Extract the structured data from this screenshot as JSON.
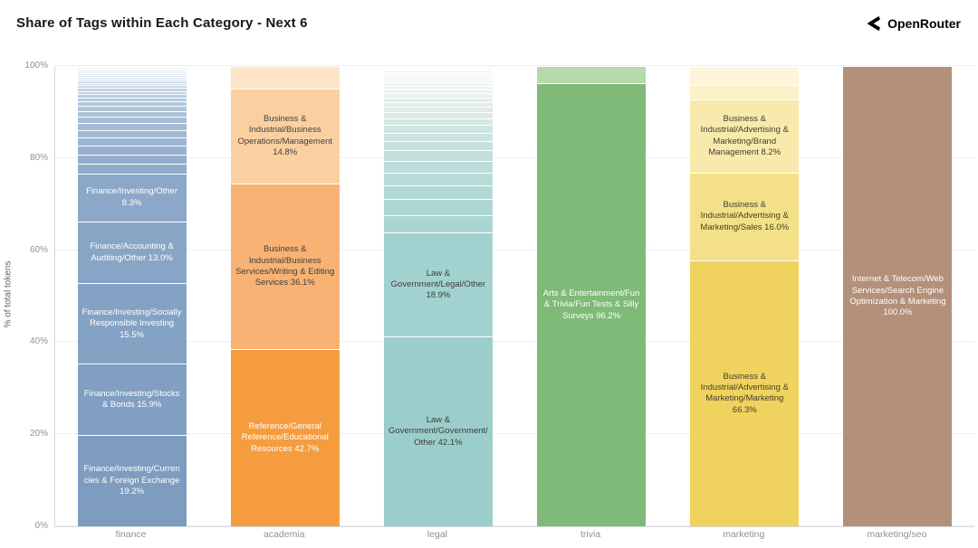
{
  "header": {
    "title": "Share of Tags within Each Category - Next 6",
    "brand": "OpenRouter"
  },
  "chart_data": {
    "type": "bar",
    "stacked": true,
    "title": "Share of Tags within Each Category - Next 6",
    "xlabel": "",
    "ylabel": "% of total tokens",
    "ylim": [
      0,
      100
    ],
    "grid": true,
    "legend": false,
    "yticks": [
      0,
      20,
      40,
      60,
      80,
      100
    ],
    "ytick_labels": [
      "0%",
      "20%",
      "40%",
      "60%",
      "80%",
      "100%"
    ],
    "categories": [
      "finance",
      "academia",
      "legal",
      "trivia",
      "marketing",
      "marketing/seo"
    ],
    "bars": [
      {
        "category": "finance",
        "segments": [
          {
            "label": "Finance/Investing/Currencies & Foreign Exchange",
            "value": 19.2,
            "color": "#7d9cc0",
            "text_color": "#ffffff"
          },
          {
            "label": "Finance/Investing/Stocks & Bonds",
            "value": 15.9,
            "color": "#809fc2",
            "text_color": "#ffffff"
          },
          {
            "label": "Finance/Investing/Socially Responsible Investing",
            "value": 15.5,
            "color": "#84a2c4",
            "text_color": "#ffffff"
          },
          {
            "label": "Finance/Accounting & Auditing/Other",
            "value": 13.0,
            "color": "#88a5c6",
            "text_color": "#ffffff"
          },
          {
            "label": "Finance/Investing/Other",
            "value": 8.3,
            "color": "#8ca8c8",
            "text_color": "#ffffff"
          },
          {
            "label": "",
            "value": 3.0,
            "color": "#90acca"
          },
          {
            "label": "",
            "value": 2.8,
            "color": "#94afcc"
          },
          {
            "label": "",
            "value": 2.6,
            "color": "#98b2ce"
          },
          {
            "label": "",
            "value": 2.4,
            "color": "#9cb5d0"
          },
          {
            "label": "",
            "value": 2.2,
            "color": "#a0b8d2"
          },
          {
            "label": "",
            "value": 2.0,
            "color": "#a4bbd4"
          },
          {
            "label": "",
            "value": 1.8,
            "color": "#a8bed6"
          },
          {
            "label": "",
            "value": 1.6,
            "color": "#acc1d8"
          },
          {
            "label": "",
            "value": 1.4,
            "color": "#b0c4da"
          },
          {
            "label": "",
            "value": 1.2,
            "color": "#b4c7dc"
          },
          {
            "label": "",
            "value": 1.0,
            "color": "#b8cade"
          },
          {
            "label": "",
            "value": 0.9,
            "color": "#bccde0"
          },
          {
            "label": "",
            "value": 0.8,
            "color": "#c0d0e2"
          },
          {
            "label": "",
            "value": 0.7,
            "color": "#c4d3e4"
          },
          {
            "label": "",
            "value": 0.6,
            "color": "#c8d6e6"
          },
          {
            "label": "",
            "value": 0.5,
            "color": "#ccd9e8"
          },
          {
            "label": "",
            "value": 0.45,
            "color": "#d0dcea"
          },
          {
            "label": "",
            "value": 0.4,
            "color": "#d4dfec"
          },
          {
            "label": "",
            "value": 0.35,
            "color": "#d8e2ee"
          },
          {
            "label": "",
            "value": 0.3,
            "color": "#dce5f0"
          },
          {
            "label": "",
            "value": 0.25,
            "color": "#e0e8f2"
          },
          {
            "label": "",
            "value": 0.25,
            "color": "#e4ebf4"
          },
          {
            "label": "",
            "value": 0.2,
            "color": "#e8eef6"
          },
          {
            "label": "",
            "value": 0.15,
            "color": "#ecf1f8"
          },
          {
            "label": "",
            "value": 0.15,
            "color": "#f0f4fa"
          },
          {
            "label": "",
            "value": 0.1,
            "color": "#f4f8fc"
          }
        ]
      },
      {
        "category": "academia",
        "segments": [
          {
            "label": "Reference/General Reference/Educational Resources",
            "value": 42.7,
            "color": "#f59c3f",
            "text_color": "#ffffff"
          },
          {
            "label": "Business & Industrial/Business Services/Writing & Editing Services",
            "value": 36.1,
            "color": "#f8b273",
            "text_color": "#414141"
          },
          {
            "label": "Business & Industrial/Business Operations/Management",
            "value": 14.8,
            "color": "#fbd0a0",
            "text_color": "#414141"
          },
          {
            "label": "",
            "value": 6.4,
            "color": "#fde4c6"
          }
        ]
      },
      {
        "category": "legal",
        "segments": [
          {
            "label": "Law & Government/Government/Other",
            "value": 42.1,
            "color": "#9bcecb",
            "text_color": "#3c3c3c"
          },
          {
            "label": "Law & Government/Legal/Other",
            "value": 18.9,
            "color": "#a2d2cf",
            "text_color": "#3c3c3c"
          },
          {
            "label": "",
            "value": 4.5,
            "color": "#a9d5d2"
          },
          {
            "label": "",
            "value": 4.0,
            "color": "#aed7d4"
          },
          {
            "label": "",
            "value": 3.6,
            "color": "#b3d9d6"
          },
          {
            "label": "",
            "value": 3.2,
            "color": "#b8dbd8"
          },
          {
            "label": "",
            "value": 2.9,
            "color": "#bdddda"
          },
          {
            "label": "",
            "value": 2.6,
            "color": "#c2dfdc"
          },
          {
            "label": "",
            "value": 2.3,
            "color": "#c7e1de"
          },
          {
            "label": "",
            "value": 2.0,
            "color": "#cce3e0"
          },
          {
            "label": "",
            "value": 1.8,
            "color": "#d1e5e2"
          },
          {
            "label": "",
            "value": 1.6,
            "color": "#d6e7e4"
          },
          {
            "label": "",
            "value": 1.4,
            "color": "#dbe9e6"
          },
          {
            "label": "",
            "value": 1.2,
            "color": "#dfebe8"
          },
          {
            "label": "",
            "value": 1.1,
            "color": "#e2edea"
          },
          {
            "label": "",
            "value": 1.0,
            "color": "#e5efec"
          },
          {
            "label": "",
            "value": 0.9,
            "color": "#e8f1ee"
          },
          {
            "label": "",
            "value": 0.8,
            "color": "#ebf3f0"
          },
          {
            "label": "",
            "value": 0.7,
            "color": "#edf4f2"
          },
          {
            "label": "",
            "value": 0.6,
            "color": "#eff5f3"
          },
          {
            "label": "",
            "value": 0.55,
            "color": "#f1f6f4"
          },
          {
            "label": "",
            "value": 0.5,
            "color": "#f2f7f5"
          },
          {
            "label": "",
            "value": 0.45,
            "color": "#f3f8f6"
          },
          {
            "label": "",
            "value": 0.4,
            "color": "#f4f8f7"
          },
          {
            "label": "",
            "value": 0.35,
            "color": "#f5f9f8"
          },
          {
            "label": "",
            "value": 0.3,
            "color": "#f6faf9"
          },
          {
            "label": "",
            "value": 0.25,
            "color": "#f7fafa"
          }
        ]
      },
      {
        "category": "trivia",
        "segments": [
          {
            "label": "Arts & Entertainment/Fun & Trivia/Fun Tests & Silly Surveys",
            "value": 96.2,
            "color": "#7fba78",
            "text_color": "#ffffff"
          },
          {
            "label": "",
            "value": 3.8,
            "color": "#b7d9ac"
          }
        ]
      },
      {
        "category": "marketing",
        "segments": [
          {
            "label": "Business & Industrial/Advertising & Marketing/Marketing",
            "value": 66.3,
            "color": "#f0d35f",
            "text_color": "#464028"
          },
          {
            "label": "Business & Industrial/Advertising & Marketing/Sales",
            "value": 16.0,
            "color": "#f4e088",
            "text_color": "#464028"
          },
          {
            "label": "Business & Industrial/Advertising & Marketing/Brand Management",
            "value": 8.2,
            "color": "#f8eaad",
            "text_color": "#464028"
          },
          {
            "label": "",
            "value": 4.2,
            "color": "#fbf1c8"
          },
          {
            "label": "",
            "value": 5.3,
            "color": "#fdf6dc"
          }
        ]
      },
      {
        "category": "marketing/seo",
        "segments": [
          {
            "label": "Internet & Telecom/Web Services/Search Engine Optimization & Marketing",
            "value": 100.0,
            "color": "#b39079",
            "text_color": "#ffffff"
          }
        ]
      }
    ]
  }
}
